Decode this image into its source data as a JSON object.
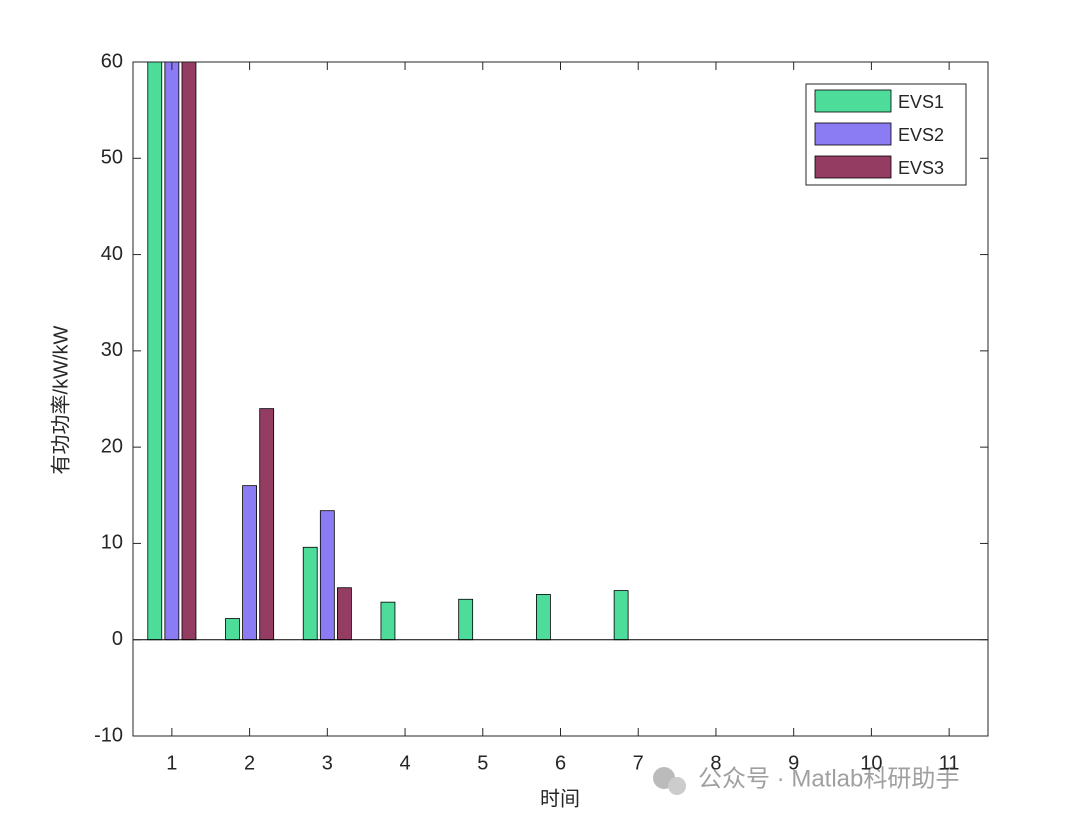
{
  "chart_data": {
    "type": "bar",
    "x_label": "时间",
    "y_label": "有功功率/kW/kW",
    "categories": [
      "1",
      "2",
      "3",
      "4",
      "5",
      "6",
      "7",
      "8",
      "9",
      "10",
      "11"
    ],
    "series": [
      {
        "name": "EVS1",
        "color": "#4ddc9a",
        "values": [
          60,
          2.2,
          9.6,
          3.9,
          4.2,
          4.7,
          5.1,
          0,
          0,
          0,
          0
        ]
      },
      {
        "name": "EVS2",
        "color": "#8c7cf4",
        "values": [
          60,
          16,
          13.4,
          0,
          0,
          0,
          0,
          0,
          0,
          0,
          0
        ]
      },
      {
        "name": "EVS3",
        "color": "#943c62",
        "values": [
          60,
          24,
          5.4,
          0,
          0,
          0,
          0,
          0,
          0,
          0,
          0
        ]
      }
    ],
    "ylim": [
      -10,
      60
    ],
    "yticks": [
      -10,
      0,
      10,
      20,
      30,
      40,
      50,
      60
    ],
    "legend": "upper-right",
    "watermark": "公众号 · Matlab科研助手"
  }
}
